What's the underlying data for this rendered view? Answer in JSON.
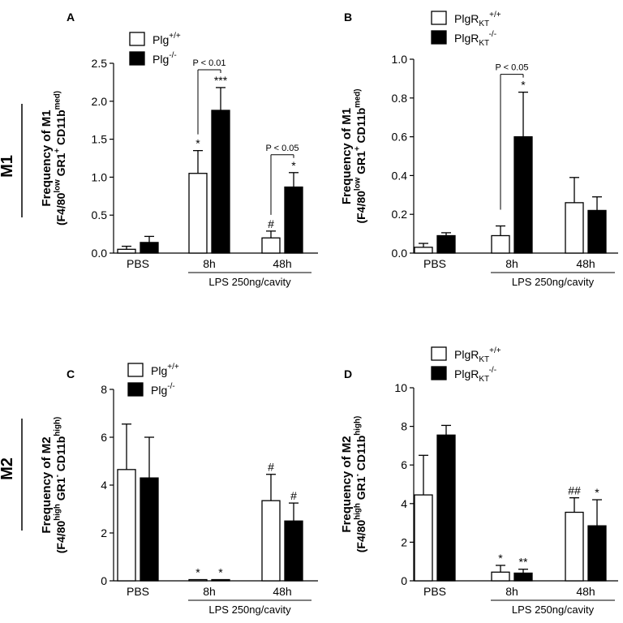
{
  "row_labels": {
    "m1": "M1",
    "m2": "M2"
  },
  "chart_data": [
    {
      "panel": "A",
      "type": "bar",
      "categories": [
        "PBS",
        "8h",
        "48h"
      ],
      "group_label": "LPS 250ng/cavity",
      "ylabel_line1": "Frequency of M1",
      "ylabel_line2": "(F4/80^low GR1^+ CD11b^med)",
      "ylim": [
        0,
        2.5
      ],
      "yticks": [
        "0.0",
        "0.5",
        "1.0",
        "1.5",
        "2.0",
        "2.5"
      ],
      "legend": [
        "Plg+/+",
        "Plg-/-"
      ],
      "series": [
        {
          "name": "Plg+/+",
          "values": [
            0.05,
            1.05,
            0.2
          ],
          "errors": [
            0.04,
            0.3,
            0.09
          ],
          "labels": [
            "",
            "*",
            "#"
          ]
        },
        {
          "name": "Plg-/-",
          "values": [
            0.14,
            1.88,
            0.87
          ],
          "errors": [
            0.08,
            0.3,
            0.19
          ],
          "labels": [
            "",
            "***",
            "*"
          ]
        }
      ],
      "comparisons": [
        {
          "text": "P < 0.01",
          "category": 1
        },
        {
          "text": "P < 0.05",
          "category": 2
        }
      ]
    },
    {
      "panel": "B",
      "type": "bar",
      "categories": [
        "PBS",
        "8h",
        "48h"
      ],
      "group_label": "LPS 250ng/cavity",
      "ylabel_line1": "Frequency of M1",
      "ylabel_line2": "(F4/80^low GR1^+ CD11b^med)",
      "ylim": [
        0,
        1.0
      ],
      "yticks": [
        "0.0",
        "0.2",
        "0.4",
        "0.6",
        "0.8",
        "1.0"
      ],
      "legend": [
        "PlgRKT+/+",
        "PlgRKT-/-"
      ],
      "series": [
        {
          "name": "PlgRKT+/+",
          "values": [
            0.03,
            0.09,
            0.26
          ],
          "errors": [
            0.02,
            0.05,
            0.13
          ],
          "labels": [
            "",
            "",
            ""
          ]
        },
        {
          "name": "PlgRKT-/-",
          "values": [
            0.09,
            0.6,
            0.22
          ],
          "errors": [
            0.015,
            0.23,
            0.07
          ],
          "labels": [
            "",
            "*",
            ""
          ]
        }
      ],
      "comparisons": [
        {
          "text": "P < 0.05",
          "category": 1
        }
      ]
    },
    {
      "panel": "C",
      "type": "bar",
      "categories": [
        "PBS",
        "8h",
        "48h"
      ],
      "group_label": "LPS 250ng/cavity",
      "ylabel_line1": "Frequency of M2",
      "ylabel_line2": "(F4/80^high GR1^- CD11b^high)",
      "ylim": [
        0,
        8
      ],
      "yticks": [
        "0",
        "2",
        "4",
        "6",
        "8"
      ],
      "legend": [
        "Plg+/+",
        "Plg-/-"
      ],
      "series": [
        {
          "name": "Plg+/+",
          "values": [
            4.65,
            0.05,
            3.35
          ],
          "errors": [
            1.9,
            0.0,
            1.1
          ],
          "labels": [
            "",
            "*",
            "#"
          ]
        },
        {
          "name": "Plg-/-",
          "values": [
            4.3,
            0.05,
            2.5
          ],
          "errors": [
            1.7,
            0.0,
            0.75
          ],
          "labels": [
            "",
            "*",
            "#"
          ]
        }
      ],
      "comparisons": []
    },
    {
      "panel": "D",
      "type": "bar",
      "categories": [
        "PBS",
        "8h",
        "48h"
      ],
      "group_label": "LPS 250ng/cavity",
      "ylabel_line1": "Frequency of M2",
      "ylabel_line2": "(F4/80^high GR1^- CD11b^high)",
      "ylim": [
        0,
        10
      ],
      "yticks": [
        "0",
        "2",
        "4",
        "6",
        "8",
        "10"
      ],
      "legend": [
        "PlgRKT+/+",
        "PlgRKT-/-"
      ],
      "series": [
        {
          "name": "PlgRKT+/+",
          "values": [
            4.45,
            0.45,
            3.55
          ],
          "errors": [
            2.05,
            0.35,
            0.75
          ],
          "labels": [
            "",
            "*",
            "##"
          ]
        },
        {
          "name": "PlgRKT-/-",
          "values": [
            7.55,
            0.4,
            2.85
          ],
          "errors": [
            0.5,
            0.2,
            1.35
          ],
          "labels": [
            "",
            "**",
            "*"
          ]
        }
      ],
      "comparisons": []
    }
  ]
}
